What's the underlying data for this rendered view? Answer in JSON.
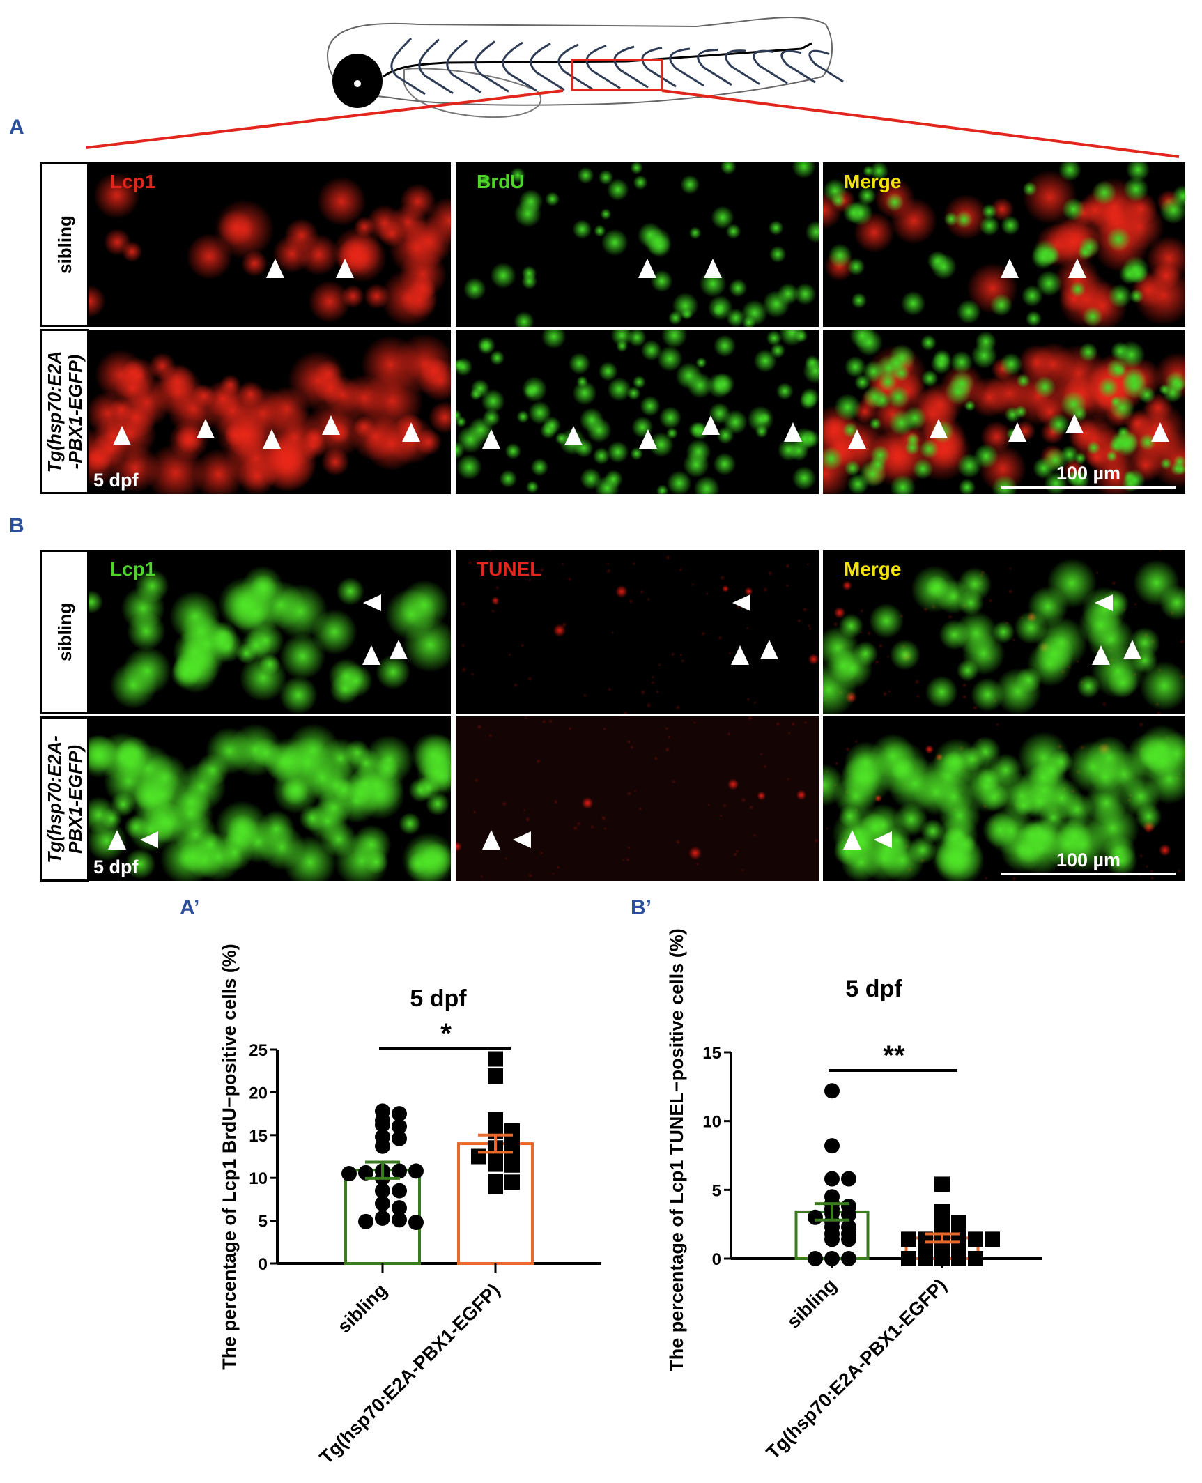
{
  "figure": {
    "panel_A_label": "A",
    "panel_B_label": "B",
    "panel_A_prime_label": "A’",
    "panel_B_prime_label": "B’",
    "highlight_color": "#e2261d"
  },
  "panel_A": {
    "rows": [
      {
        "label": "sibling",
        "italic": false
      },
      {
        "label": "Tg(hsp70:E2A\n-PBX1-EGFP)",
        "italic": true
      }
    ],
    "channels": [
      {
        "label": "Lcp1",
        "color": "#e2261d"
      },
      {
        "label": "BrdU",
        "color": "#4fd42a"
      },
      {
        "label": "Merge",
        "color": "#f2e400"
      }
    ],
    "stage_label": "5 dpf",
    "scale_bar": "100 µm"
  },
  "panel_B": {
    "rows": [
      {
        "label": "sibling",
        "italic": false
      },
      {
        "label": "Tg(hsp70:E2A-\nPBX1-EGFP)",
        "italic": true
      }
    ],
    "channels": [
      {
        "label": "Lcp1",
        "color": "#4fd42a"
      },
      {
        "label": "TUNEL",
        "color": "#e2261d"
      },
      {
        "label": "Merge",
        "color": "#f2e400"
      }
    ],
    "stage_label": "5 dpf",
    "scale_bar": "100 µm"
  },
  "chart_data": [
    {
      "type": "bar",
      "title": "5 dpf",
      "ylabel": "The percentage of Lcp1 BrdU−positive cells (%)",
      "xlabel": "",
      "categories": [
        "sibling",
        "Tg(hsp70:E2A-PBX1-EGFP)"
      ],
      "ylim": [
        0,
        25
      ],
      "yticks": [
        0,
        5,
        10,
        15,
        20,
        25
      ],
      "bar_colors": [
        "#3a7d1e",
        "#e8692a"
      ],
      "means": [
        10.9,
        14.0
      ],
      "sem": [
        0.95,
        1.0
      ],
      "significance": "*",
      "points": [
        [
          17.8,
          17.5,
          16.7,
          16.2,
          16.0,
          14.8,
          14.6,
          13.7,
          10.8,
          10.8,
          10.6,
          10.8,
          10.5,
          10.0,
          8.5,
          8.5,
          7.0,
          6.5,
          5.3,
          5.1,
          4.9,
          4.8
        ],
        [
          23.9,
          21.9,
          16.8,
          16.2,
          15.5,
          15.4,
          14.5,
          13.5,
          13.0,
          12.8,
          12.5,
          11.6,
          11.5,
          9.6,
          9.5,
          9.0
        ]
      ],
      "markers": [
        "circle",
        "square"
      ]
    },
    {
      "type": "bar",
      "title": "5 dpf",
      "ylabel": "The percentage of Lcp1 TUNEL−positive cells (%)",
      "xlabel": "",
      "categories": [
        "sibling",
        "Tg(hsp70:E2A-PBX1-EGFP)"
      ],
      "ylim": [
        0,
        15
      ],
      "yticks": [
        0,
        5,
        10,
        15
      ],
      "bar_colors": [
        "#3a7d1e",
        "#e8692a"
      ],
      "means": [
        3.4,
        1.5
      ],
      "sem": [
        0.6,
        0.3
      ],
      "significance": "**",
      "points": [
        [
          12.2,
          8.2,
          5.8,
          5.8,
          4.5,
          4.0,
          3.8,
          3.6,
          3.3,
          3.2,
          3.0,
          2.7,
          2.3,
          2.3,
          1.8,
          1.8,
          1.4,
          1.4,
          0,
          0,
          0
        ],
        [
          5.4,
          3.4,
          2.8,
          2.6,
          2.3,
          2.0,
          1.8,
          1.7,
          1.5,
          1.4,
          1.4,
          1.4,
          1.4,
          1.3,
          1.2,
          0.9,
          0.9,
          0.9,
          0,
          0,
          0,
          0,
          0
        ]
      ],
      "markers": [
        "circle",
        "square"
      ]
    }
  ]
}
